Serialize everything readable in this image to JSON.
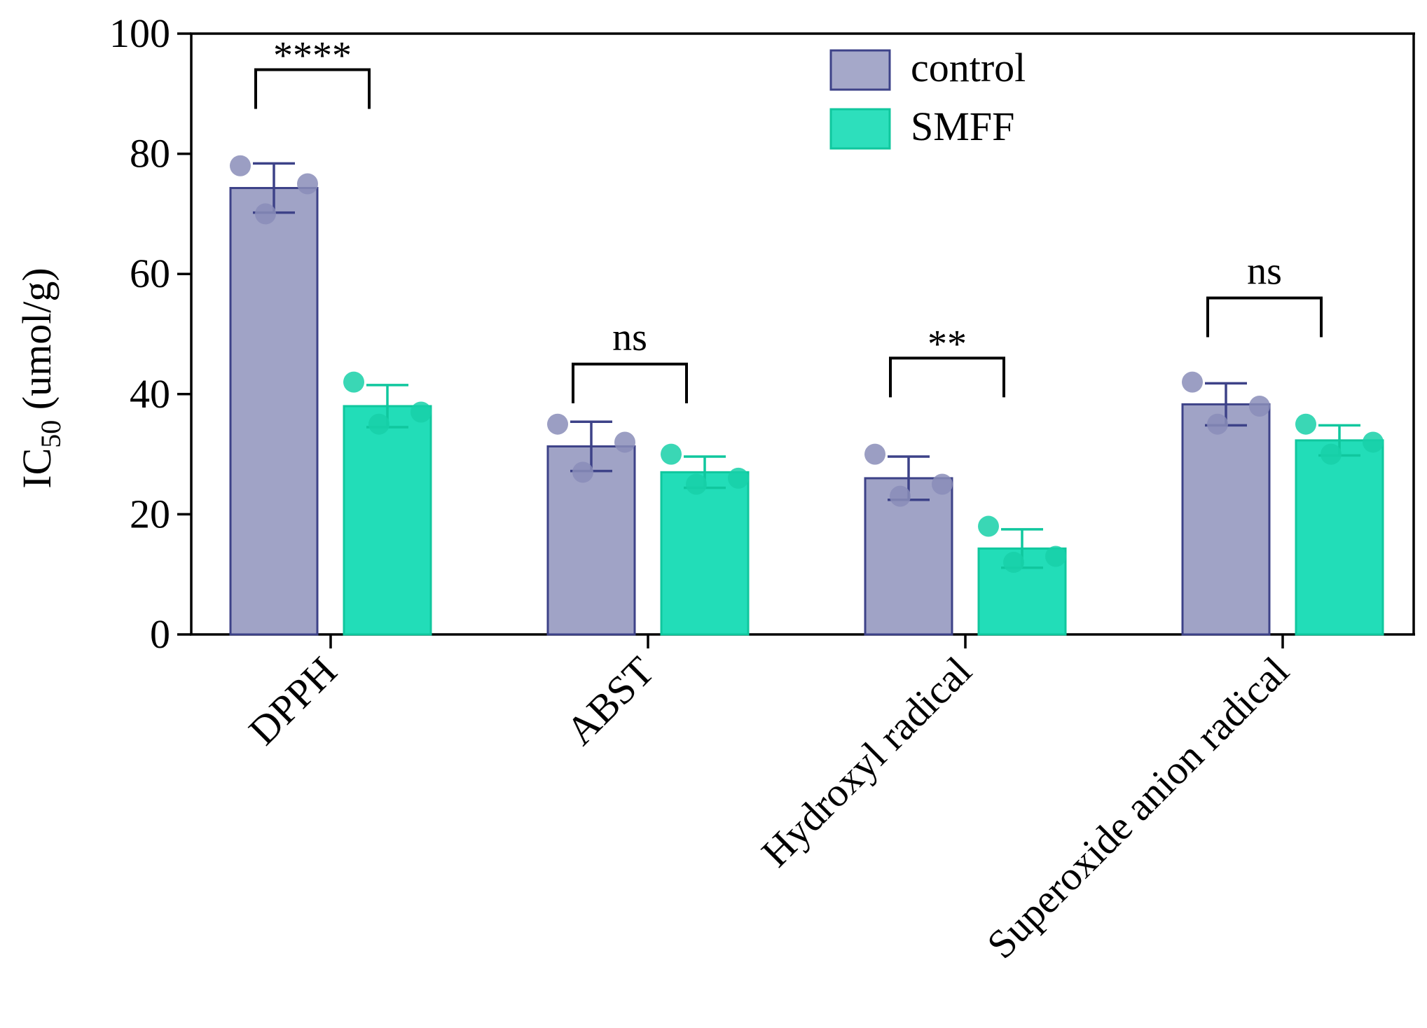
{
  "chart_data": {
    "type": "bar",
    "title": "",
    "xlabel": "",
    "ylabel": "IC",
    "ylabel_subscript": "50",
    "ylabel_unit": " (umol/g)",
    "ylim": [
      0,
      100
    ],
    "yticks": [
      0,
      20,
      40,
      60,
      80,
      100
    ],
    "ytick_labels": [
      "0",
      "20",
      "40",
      "60",
      "80",
      "100"
    ],
    "categories": [
      "DPPH",
      "ABST",
      "Hydroxyl radical",
      "Superoxide anion radical"
    ],
    "legend_position": "top-right",
    "series": [
      {
        "name": "control",
        "color": "#a0a3c6",
        "edge_color": "#3d4288",
        "point_color": "#8a8db8",
        "values": [
          74.3,
          31.3,
          26.0,
          38.3
        ],
        "errors": [
          4.1,
          4.1,
          3.6,
          3.5
        ],
        "points": [
          [
            78,
            70,
            75
          ],
          [
            35,
            27,
            32
          ],
          [
            30,
            23,
            25
          ],
          [
            42,
            35,
            38
          ]
        ]
      },
      {
        "name": "SMFF",
        "color": "#22ddb8",
        "edge_color": "#10c79e",
        "point_color": "#18d0a8",
        "values": [
          38.0,
          27.0,
          14.3,
          32.3
        ],
        "errors": [
          3.5,
          2.6,
          3.2,
          2.5
        ],
        "points": [
          [
            42,
            35,
            37
          ],
          [
            30,
            25,
            26
          ],
          [
            18,
            12,
            13
          ],
          [
            35,
            30,
            32
          ]
        ]
      }
    ],
    "significance": [
      {
        "category": "DPPH",
        "label": "****",
        "y": 94
      },
      {
        "category": "ABST",
        "label": "ns",
        "y": 45
      },
      {
        "category": "Hydroxyl radical",
        "label": "**",
        "y": 46
      },
      {
        "category": "Superoxide anion radical",
        "label": "ns",
        "y": 56
      }
    ]
  }
}
